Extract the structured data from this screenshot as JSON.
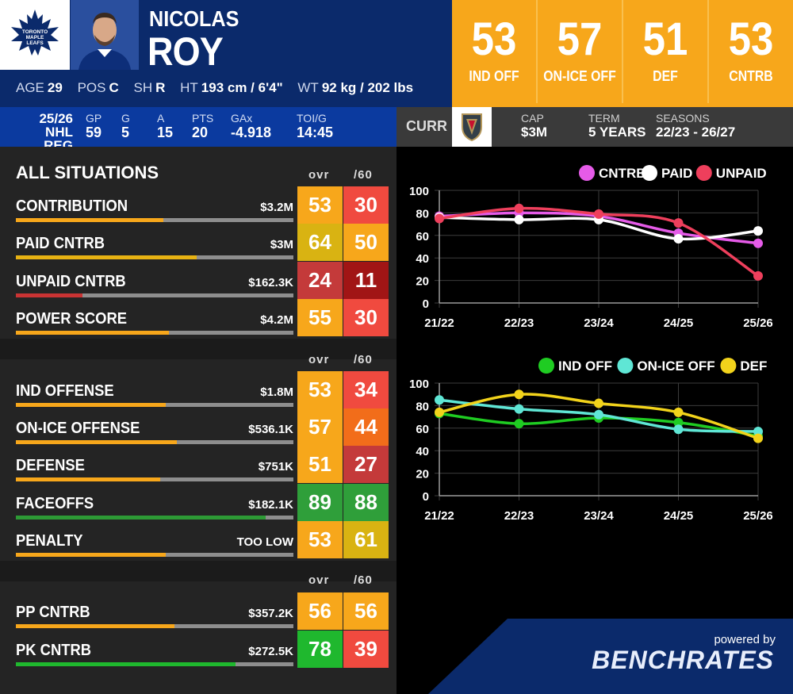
{
  "player": {
    "first_name": "NICOLAS",
    "last_name": "ROY",
    "team_logo_text": "TORONTO MAPLE LEAFS",
    "bio": {
      "age_label": "AGE",
      "age": "29",
      "pos_label": "POS",
      "pos": "C",
      "sh_label": "SH",
      "sh": "R",
      "ht_label": "HT",
      "ht": "193 cm / 6'4\"",
      "wt_label": "WT",
      "wt": "92 kg / 202 lbs"
    }
  },
  "big_ratings": [
    {
      "value": "53",
      "label": "IND OFF"
    },
    {
      "value": "57",
      "label": "ON-ICE OFF"
    },
    {
      "value": "51",
      "label": "DEF"
    },
    {
      "value": "53",
      "label": "CNTRB"
    }
  ],
  "season_stats": {
    "season": "25/26",
    "league": "NHL REG",
    "gp_label": "GP",
    "gp": "59",
    "g_label": "G",
    "g": "5",
    "a_label": "A",
    "a": "15",
    "pts_label": "PTS",
    "pts": "20",
    "gax_label": "GAx",
    "gax": "-4.918",
    "toi_label": "TOI/G",
    "toi": "14:45"
  },
  "contract": {
    "curr_label": "CURR",
    "cap_label": "CAP",
    "cap": "$3M",
    "term_label": "TERM",
    "term": "5 YEARS",
    "seasons_label": "SEASONS",
    "seasons": "22/23 - 26/27"
  },
  "situations": {
    "title": "ALL SITUATIONS",
    "ovr_label": "ovr",
    "p60_label": "/60"
  },
  "metrics": [
    {
      "label": "CONTRIBUTION",
      "value": "$3.2M",
      "ovr": "53",
      "p60": "30",
      "bar": 0.53,
      "bar_color": "#f7a71b",
      "ovr_color": "#f7a71b",
      "p60_color": "#f04a3f"
    },
    {
      "label": "PAID CNTRB",
      "value": "$3M",
      "ovr": "64",
      "p60": "50",
      "bar": 0.65,
      "bar_color": "#e7b213",
      "ovr_color": "#d9b312",
      "p60_color": "#f7a71b"
    },
    {
      "label": "UNPAID CNTRB",
      "value": "$162.3K",
      "ovr": "24",
      "p60": "11",
      "bar": 0.24,
      "bar_color": "#c93333",
      "ovr_color": "#c43a3a",
      "p60_color": "#a11515"
    },
    {
      "label": "POWER SCORE",
      "value": "$4.2M",
      "ovr": "55",
      "p60": "30",
      "bar": 0.55,
      "bar_color": "#f7a71b",
      "ovr_color": "#f7a71b",
      "p60_color": "#f04a3f"
    },
    {
      "label": "IND OFFENSE",
      "value": "$1.8M",
      "ovr": "53",
      "p60": "34",
      "bar": 0.54,
      "bar_color": "#f7a71b",
      "ovr_color": "#f7a71b",
      "p60_color": "#f04a3f"
    },
    {
      "label": "ON-ICE OFFENSE",
      "value": "$536.1K",
      "ovr": "57",
      "p60": "44",
      "bar": 0.58,
      "bar_color": "#f7a71b",
      "ovr_color": "#f7a71b",
      "p60_color": "#f26d1a"
    },
    {
      "label": "DEFENSE",
      "value": "$751K",
      "ovr": "51",
      "p60": "27",
      "bar": 0.52,
      "bar_color": "#f7a71b",
      "ovr_color": "#f7a71b",
      "p60_color": "#c43a3a"
    },
    {
      "label": "FACEOFFS",
      "value": "$182.1K",
      "ovr": "89",
      "p60": "88",
      "bar": 0.9,
      "bar_color": "#2d9a35",
      "ovr_color": "#2f9f3a",
      "p60_color": "#2f9f3a"
    },
    {
      "label": "PENALTY",
      "value": "TOO LOW",
      "ovr": "53",
      "p60": "61",
      "bar": 0.54,
      "bar_color": "#f7a71b",
      "ovr_color": "#f7a71b",
      "p60_color": "#d9b312"
    },
    {
      "label": "PP CNTRB",
      "value": "$357.2K",
      "ovr": "56",
      "p60": "56",
      "bar": 0.57,
      "bar_color": "#f7a71b",
      "ovr_color": "#f7a71b",
      "p60_color": "#f7a71b"
    },
    {
      "label": "PK CNTRB",
      "value": "$272.5K",
      "ovr": "78",
      "p60": "39",
      "bar": 0.79,
      "bar_color": "#1fb82e",
      "ovr_color": "#1fb82e",
      "p60_color": "#f04a3f"
    }
  ],
  "branding": {
    "powered_by": "powered by",
    "name": "BENCHRATES"
  },
  "chart_data": [
    {
      "type": "line",
      "categories": [
        "21/22",
        "22/23",
        "23/24",
        "24/25",
        "25/26"
      ],
      "ylim": [
        0,
        100
      ],
      "yticks": [
        0,
        20,
        40,
        60,
        80,
        100
      ],
      "legend": "top-right",
      "grid": true,
      "series": [
        {
          "name": "CNTRB",
          "color": "#e55be8",
          "values": [
            77,
            80,
            77,
            62,
            53
          ]
        },
        {
          "name": "PAID",
          "color": "#ffffff",
          "values": [
            76,
            74,
            74,
            57,
            64
          ]
        },
        {
          "name": "UNPAID",
          "color": "#ee3f5c",
          "values": [
            75,
            84,
            79,
            71,
            24
          ]
        }
      ]
    },
    {
      "type": "line",
      "categories": [
        "21/22",
        "22/23",
        "23/24",
        "24/25",
        "25/26"
      ],
      "ylim": [
        0,
        100
      ],
      "yticks": [
        0,
        20,
        40,
        60,
        80,
        100
      ],
      "legend": "top-right",
      "grid": true,
      "series": [
        {
          "name": "IND OFF",
          "color": "#1fcc22",
          "values": [
            73,
            64,
            69,
            65,
            53
          ]
        },
        {
          "name": "ON-ICE OFF",
          "color": "#5fe6d5",
          "values": [
            85,
            77,
            72,
            59,
            57
          ]
        },
        {
          "name": "DEF",
          "color": "#f2d31b",
          "values": [
            74,
            90,
            82,
            74,
            51
          ]
        }
      ]
    }
  ]
}
